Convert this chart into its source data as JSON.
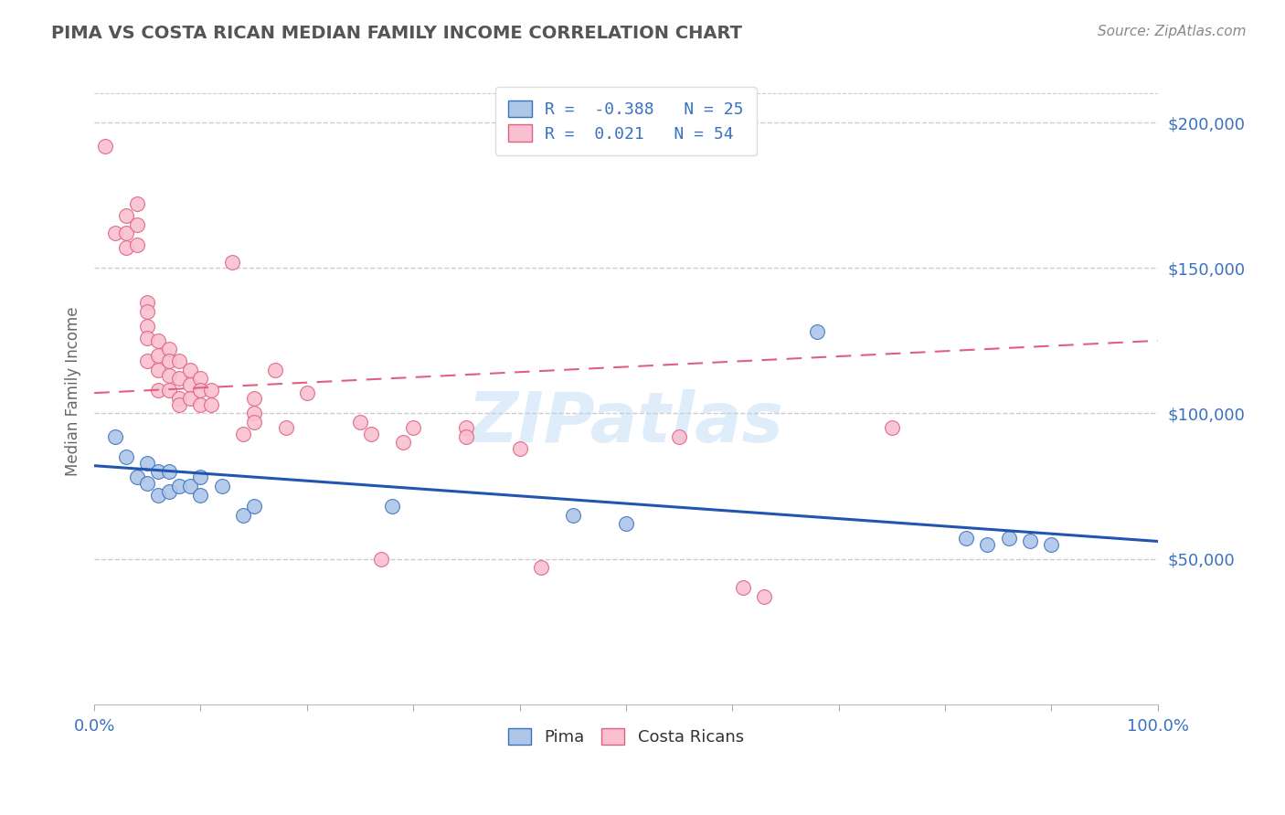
{
  "title": "PIMA VS COSTA RICAN MEDIAN FAMILY INCOME CORRELATION CHART",
  "source_text": "Source: ZipAtlas.com",
  "ylabel": "Median Family Income",
  "xlim": [
    0,
    1.0
  ],
  "ylim": [
    0,
    215000
  ],
  "ytick_values": [
    50000,
    100000,
    150000,
    200000
  ],
  "ytick_labels": [
    "$50,000",
    "$100,000",
    "$150,000",
    "$200,000"
  ],
  "pima_R": -0.388,
  "pima_N": 25,
  "costa_R": 0.021,
  "costa_N": 54,
  "pima_color": "#aec6e8",
  "pima_edge_color": "#3a72c0",
  "pima_line_color": "#2255b0",
  "costa_color": "#f8c0d0",
  "costa_edge_color": "#e06080",
  "costa_line_color": "#e06080",
  "background_color": "#ffffff",
  "grid_color": "#cccccc",
  "title_color": "#555555",
  "axis_label_color": "#3a72c0",
  "watermark_text": "ZIPatlas",
  "pima_scatter_x": [
    0.02,
    0.03,
    0.04,
    0.05,
    0.05,
    0.06,
    0.06,
    0.07,
    0.07,
    0.08,
    0.09,
    0.1,
    0.1,
    0.12,
    0.14,
    0.15,
    0.28,
    0.45,
    0.5,
    0.68,
    0.82,
    0.84,
    0.86,
    0.88,
    0.9
  ],
  "pima_scatter_y": [
    92000,
    85000,
    78000,
    83000,
    76000,
    80000,
    72000,
    80000,
    73000,
    75000,
    75000,
    78000,
    72000,
    75000,
    65000,
    68000,
    68000,
    65000,
    62000,
    128000,
    57000,
    55000,
    57000,
    56000,
    55000
  ],
  "costa_scatter_x": [
    0.01,
    0.02,
    0.03,
    0.03,
    0.03,
    0.04,
    0.04,
    0.04,
    0.05,
    0.05,
    0.05,
    0.05,
    0.05,
    0.06,
    0.06,
    0.06,
    0.06,
    0.07,
    0.07,
    0.07,
    0.07,
    0.08,
    0.08,
    0.08,
    0.08,
    0.09,
    0.09,
    0.09,
    0.1,
    0.1,
    0.1,
    0.11,
    0.11,
    0.13,
    0.14,
    0.15,
    0.15,
    0.15,
    0.17,
    0.18,
    0.2,
    0.25,
    0.26,
    0.27,
    0.29,
    0.3,
    0.35,
    0.35,
    0.4,
    0.42,
    0.55,
    0.61,
    0.63,
    0.75
  ],
  "costa_scatter_y": [
    192000,
    162000,
    168000,
    162000,
    157000,
    172000,
    165000,
    158000,
    138000,
    135000,
    130000,
    126000,
    118000,
    125000,
    120000,
    115000,
    108000,
    122000,
    118000,
    113000,
    108000,
    118000,
    112000,
    105000,
    103000,
    115000,
    110000,
    105000,
    112000,
    108000,
    103000,
    108000,
    103000,
    152000,
    93000,
    105000,
    100000,
    97000,
    115000,
    95000,
    107000,
    97000,
    93000,
    50000,
    90000,
    95000,
    95000,
    92000,
    88000,
    47000,
    92000,
    40000,
    37000,
    95000
  ]
}
